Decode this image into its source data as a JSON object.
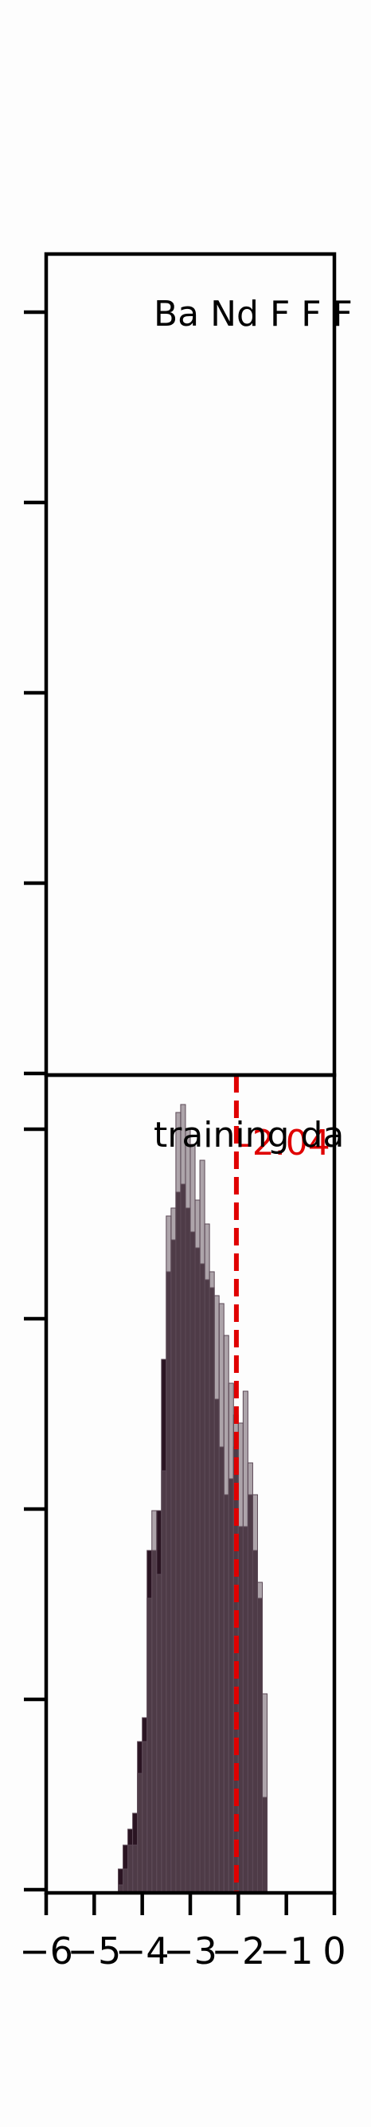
{
  "chart_data": [
    {
      "type": "bar",
      "panel": "top",
      "annotation": "Ba Nd F F F",
      "values": [],
      "y_ticks": 5,
      "xlim": [
        0,
        6
      ],
      "grid": false
    },
    {
      "type": "bar",
      "panel": "bottom",
      "annotation": "training da",
      "xlim": [
        -6,
        0
      ],
      "x_ticks": [
        -6,
        -5,
        -4,
        -3,
        -2,
        -1,
        0
      ],
      "x_tick_labels": [
        "−6",
        "−5",
        "−4",
        "−3",
        "−2",
        "−1",
        "0"
      ],
      "grid": false,
      "colors": {
        "bar_fill": "#2a1422",
        "bar_edge": "#5b4855",
        "overlay": "#6b5b66",
        "marker": "#e00000"
      },
      "bins": {
        "start": -4.5,
        "width": 0.1,
        "dark_counts": [
          3,
          6,
          8,
          10,
          19,
          22,
          43,
          43,
          48,
          67,
          78,
          82,
          88,
          89,
          86,
          83,
          81,
          79,
          77,
          76,
          62,
          56,
          50,
          52,
          56,
          46,
          46,
          50,
          43,
          37,
          12
        ],
        "light_counts": [
          1,
          3,
          6,
          6,
          15,
          19,
          37,
          48,
          40,
          53,
          85,
          86,
          98,
          99,
          96,
          94,
          87,
          92,
          84,
          78,
          75,
          74,
          70,
          64,
          60,
          59,
          63,
          54,
          50,
          39,
          25
        ]
      },
      "marker": {
        "x": -2.04,
        "label": "-2.04",
        "style": "dashed"
      }
    }
  ]
}
